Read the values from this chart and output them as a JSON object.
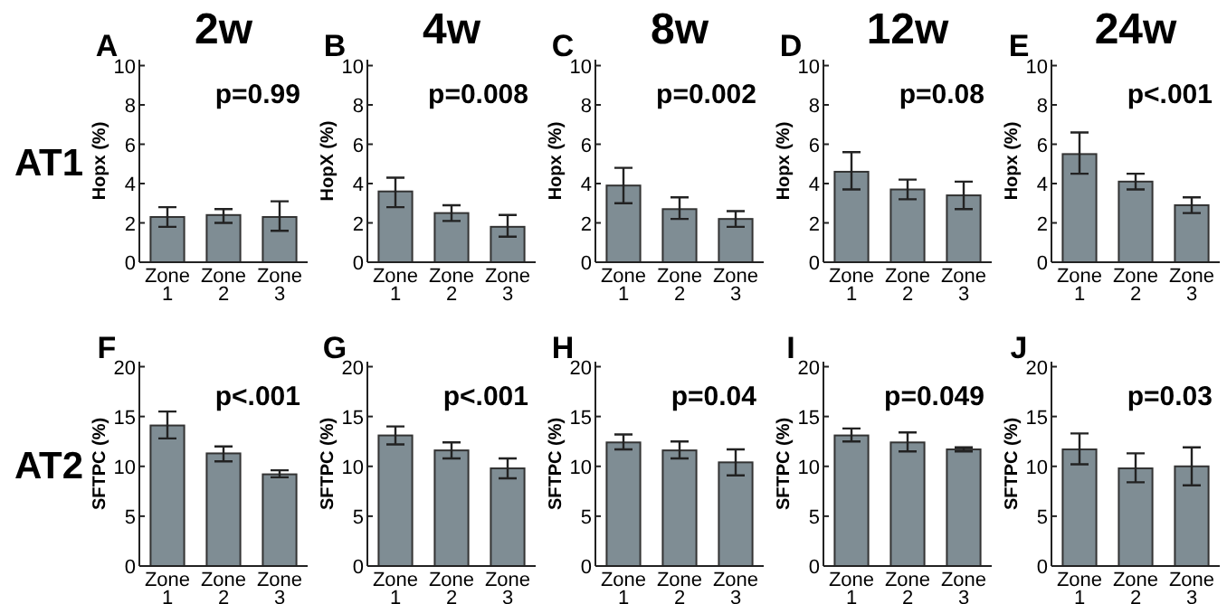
{
  "chart_data": [
    {
      "type": "bar",
      "title": "2w",
      "subtitle": "A",
      "ylabel": "Hopx (%)",
      "annotations": [
        "AT1",
        "p=0.99"
      ],
      "categories": [
        "Zone 1",
        "Zone 2",
        "Zone 3"
      ],
      "values": [
        2.3,
        2.4,
        2.3
      ],
      "errors": [
        [
          1.8,
          2.8
        ],
        [
          2.0,
          2.7
        ],
        [
          1.6,
          3.1
        ]
      ],
      "color": "#7f8d94",
      "ylim": [
        0,
        10.3
      ],
      "yticks": [
        0,
        2,
        4,
        6,
        8,
        10
      ]
    },
    {
      "type": "bar",
      "title": "4w",
      "subtitle": "B",
      "ylabel": "HopX (%)",
      "annotations": [
        "p=0.008"
      ],
      "categories": [
        "Zone 1",
        "Zone 2",
        "Zone 3"
      ],
      "values": [
        3.6,
        2.5,
        1.8
      ],
      "errors": [
        [
          2.8,
          4.3
        ],
        [
          2.1,
          2.9
        ],
        [
          1.3,
          2.4
        ]
      ],
      "color": "#7f8d94",
      "ylim": [
        0,
        10.3
      ],
      "yticks": [
        0,
        2,
        4,
        6,
        8,
        10
      ]
    },
    {
      "type": "bar",
      "title": "8w",
      "subtitle": "C",
      "ylabel": "Hopx (%)",
      "annotations": [
        "p=0.002"
      ],
      "categories": [
        "Zone 1",
        "Zone 2",
        "Zone 3"
      ],
      "values": [
        3.9,
        2.7,
        2.2
      ],
      "errors": [
        [
          3.0,
          4.8
        ],
        [
          2.2,
          3.3
        ],
        [
          1.8,
          2.6
        ]
      ],
      "color": "#7f8d94",
      "ylim": [
        0,
        10.3
      ],
      "yticks": [
        0,
        2,
        4,
        6,
        8,
        10
      ]
    },
    {
      "type": "bar",
      "title": "12w",
      "subtitle": "D",
      "ylabel": "Hopx (%)",
      "annotations": [
        "p=0.08"
      ],
      "categories": [
        "Zone 1",
        "Zone 2",
        "Zone 3"
      ],
      "values": [
        4.6,
        3.7,
        3.4
      ],
      "errors": [
        [
          3.7,
          5.6
        ],
        [
          3.2,
          4.2
        ],
        [
          2.7,
          4.1
        ]
      ],
      "color": "#7f8d94",
      "ylim": [
        0,
        10.3
      ],
      "yticks": [
        0,
        2,
        4,
        6,
        8,
        10
      ]
    },
    {
      "type": "bar",
      "title": "24w",
      "subtitle": "E",
      "ylabel": "Hopx (%)",
      "annotations": [
        "p<.001"
      ],
      "categories": [
        "Zone 1",
        "Zone 2",
        "Zone 3"
      ],
      "values": [
        5.5,
        4.1,
        2.9
      ],
      "errors": [
        [
          4.5,
          6.6
        ],
        [
          3.7,
          4.5
        ],
        [
          2.5,
          3.3
        ]
      ],
      "color": "#7f8d94",
      "ylim": [
        0,
        10.3
      ],
      "yticks": [
        0,
        2,
        4,
        6,
        8,
        10
      ]
    },
    {
      "type": "bar",
      "subtitle": "F",
      "ylabel": "SFTPC (%)",
      "annotations": [
        "AT2",
        "p<.001"
      ],
      "categories": [
        "Zone 1",
        "Zone 2",
        "Zone 3"
      ],
      "values": [
        14.1,
        11.3,
        9.2
      ],
      "errors": [
        [
          12.8,
          15.5
        ],
        [
          10.5,
          12.0
        ],
        [
          8.9,
          9.6
        ]
      ],
      "color": "#7f8d94",
      "ylim": [
        0,
        20.5
      ],
      "yticks": [
        0,
        5,
        10,
        15,
        20
      ]
    },
    {
      "type": "bar",
      "subtitle": "G",
      "ylabel": "SFTPC (%)",
      "annotations": [
        "p<.001"
      ],
      "categories": [
        "Zone 1",
        "Zone 2",
        "Zone 3"
      ],
      "values": [
        13.1,
        11.6,
        9.8
      ],
      "errors": [
        [
          12.2,
          14.0
        ],
        [
          10.8,
          12.4
        ],
        [
          8.8,
          10.8
        ]
      ],
      "color": "#7f8d94",
      "ylim": [
        0,
        20.5
      ],
      "yticks": [
        0,
        5,
        10,
        15,
        20
      ]
    },
    {
      "type": "bar",
      "subtitle": "H",
      "ylabel": "SFTPC (%)",
      "annotations": [
        "p=0.04"
      ],
      "categories": [
        "Zone 1",
        "Zone 2",
        "Zone 3"
      ],
      "values": [
        12.4,
        11.6,
        10.4
      ],
      "errors": [
        [
          11.7,
          13.2
        ],
        [
          10.8,
          12.5
        ],
        [
          9.1,
          11.7
        ]
      ],
      "color": "#7f8d94",
      "ylim": [
        0,
        20.5
      ],
      "yticks": [
        0,
        5,
        10,
        15,
        20
      ]
    },
    {
      "type": "bar",
      "subtitle": "I",
      "ylabel": "SFTPC (%)",
      "annotations": [
        "p=0.049"
      ],
      "categories": [
        "Zone 1",
        "Zone 2",
        "Zone 3"
      ],
      "values": [
        13.1,
        12.4,
        11.7
      ],
      "errors": [
        [
          12.5,
          13.8
        ],
        [
          11.5,
          13.4
        ],
        [
          11.5,
          11.9
        ]
      ],
      "color": "#7f8d94",
      "ylim": [
        0,
        20.5
      ],
      "yticks": [
        0,
        5,
        10,
        15,
        20
      ]
    },
    {
      "type": "bar",
      "subtitle": "J",
      "ylabel": "SFTPC (%)",
      "annotations": [
        "p=0.03"
      ],
      "categories": [
        "Zone 1",
        "Zone 2",
        "Zone 3"
      ],
      "values": [
        11.7,
        9.8,
        10.0
      ],
      "errors": [
        [
          10.2,
          13.3
        ],
        [
          8.4,
          11.3
        ],
        [
          8.1,
          11.9
        ]
      ],
      "color": "#7f8d94",
      "ylim": [
        0,
        20.5
      ],
      "yticks": [
        0,
        5,
        10,
        15,
        20
      ]
    }
  ]
}
